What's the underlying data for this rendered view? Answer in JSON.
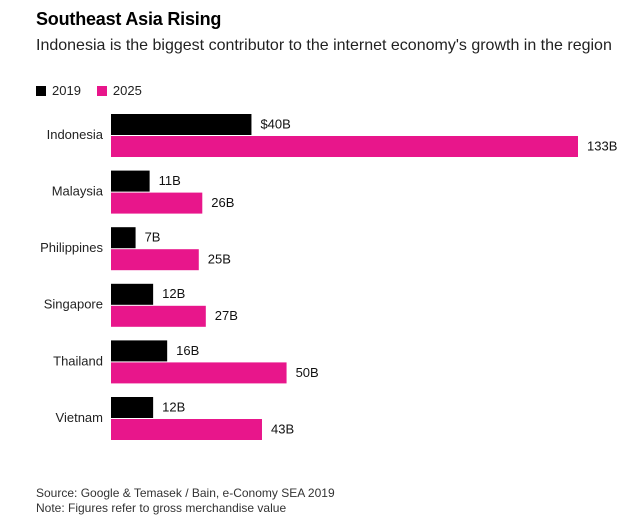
{
  "chart_data": {
    "type": "bar",
    "orientation": "horizontal",
    "title": "Southeast Asia Rising",
    "subtitle": "Indonesia is the biggest contributor to the internet economy's growth in the region",
    "categories": [
      "Indonesia",
      "Malaysia",
      "Philippines",
      "Singapore",
      "Thailand",
      "Vietnam"
    ],
    "series": [
      {
        "name": "2019",
        "color": "#000000",
        "values": [
          40,
          11,
          7,
          12,
          16,
          12
        ],
        "labels": [
          "$40B",
          "11B",
          "7B",
          "12B",
          "16B",
          "12B"
        ]
      },
      {
        "name": "2025",
        "color": "#e8168b",
        "values": [
          133,
          26,
          25,
          27,
          50,
          43
        ],
        "labels": [
          "133B",
          "26B",
          "25B",
          "27B",
          "50B",
          "43B"
        ]
      }
    ],
    "xlim": [
      0,
      133
    ],
    "grid": false,
    "legend_position": "top-left",
    "source": "Source: Google & Temasek / Bain, e-Conomy SEA 2019",
    "note": "Note: Figures refer to gross merchandise value"
  }
}
